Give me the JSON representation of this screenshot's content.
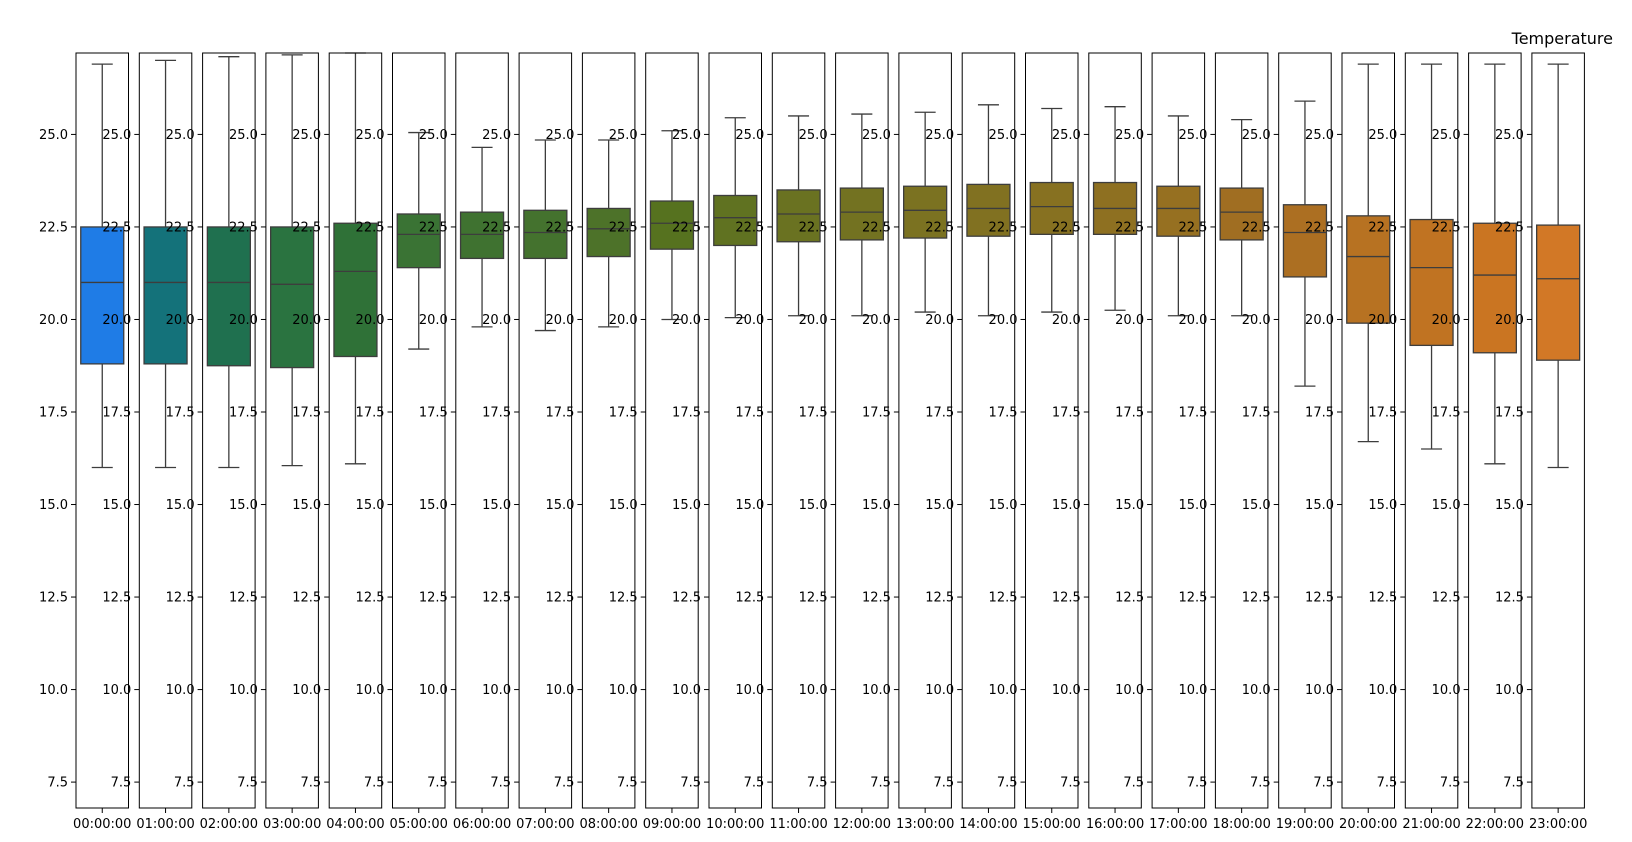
{
  "chart_data": {
    "type": "box",
    "title": "Temperature",
    "xlabel": "",
    "ylabel": "",
    "ylim": [
      6.8,
      27.2
    ],
    "yticks": [
      7.5,
      10.0,
      12.5,
      15.0,
      17.5,
      20.0,
      22.5,
      25.0
    ],
    "ytick_labels": [
      "7.5",
      "10.0",
      "12.5",
      "15.0",
      "17.5",
      "20.0",
      "22.5",
      "25.0"
    ],
    "inner_ytick_labels": [
      "7.5",
      "10.0",
      "12.5",
      "15.0",
      "17.5",
      "20.0",
      "22.5",
      "25.0"
    ],
    "grid": false,
    "legend": "none",
    "categories": [
      "00:00:00",
      "01:00:00",
      "02:00:00",
      "03:00:00",
      "04:00:00",
      "05:00:00",
      "06:00:00",
      "07:00:00",
      "08:00:00",
      "09:00:00",
      "10:00:00",
      "11:00:00",
      "12:00:00",
      "13:00:00",
      "14:00:00",
      "15:00:00",
      "16:00:00",
      "17:00:00",
      "18:00:00",
      "19:00:00",
      "20:00:00",
      "21:00:00",
      "22:00:00",
      "23:00:00"
    ],
    "boxes": [
      {
        "whislo": 16.0,
        "q1": 18.8,
        "med": 21.0,
        "q3": 22.5,
        "whishi": 26.9,
        "color": "#1f7ce6"
      },
      {
        "whislo": 16.0,
        "q1": 18.8,
        "med": 21.0,
        "q3": 22.5,
        "whishi": 27.0,
        "color": "#14727a"
      },
      {
        "whislo": 16.0,
        "q1": 18.75,
        "med": 21.0,
        "q3": 22.5,
        "whishi": 27.1,
        "color": "#1f704f"
      },
      {
        "whislo": 16.05,
        "q1": 18.7,
        "med": 20.95,
        "q3": 22.5,
        "whishi": 27.15,
        "color": "#2a7340"
      },
      {
        "whislo": 16.1,
        "q1": 19.0,
        "med": 21.3,
        "q3": 22.6,
        "whishi": 27.2,
        "color": "#2f7137"
      },
      {
        "whislo": 19.2,
        "q1": 21.4,
        "med": 22.3,
        "q3": 22.85,
        "whishi": 25.05,
        "color": "#3a7334"
      },
      {
        "whislo": 19.8,
        "q1": 21.65,
        "med": 22.3,
        "q3": 22.9,
        "whishi": 24.65,
        "color": "#3f7230"
      },
      {
        "whislo": 19.7,
        "q1": 21.65,
        "med": 22.35,
        "q3": 22.95,
        "whishi": 24.85,
        "color": "#44722e"
      },
      {
        "whislo": 19.8,
        "q1": 21.7,
        "med": 22.45,
        "q3": 23.0,
        "whishi": 24.85,
        "color": "#4d7229"
      },
      {
        "whislo": 20.0,
        "q1": 21.9,
        "med": 22.6,
        "q3": 23.2,
        "whishi": 25.1,
        "color": "#56721f"
      },
      {
        "whislo": 20.05,
        "q1": 22.0,
        "med": 22.75,
        "q3": 23.35,
        "whishi": 25.45,
        "color": "#607221"
      },
      {
        "whislo": 20.1,
        "q1": 22.1,
        "med": 22.85,
        "q3": 23.5,
        "whishi": 25.5,
        "color": "#6a7221"
      },
      {
        "whislo": 20.1,
        "q1": 22.15,
        "med": 22.9,
        "q3": 23.55,
        "whishi": 25.55,
        "color": "#737221"
      },
      {
        "whislo": 20.2,
        "q1": 22.2,
        "med": 22.95,
        "q3": 23.6,
        "whishi": 25.6,
        "color": "#7b7221"
      },
      {
        "whislo": 20.1,
        "q1": 22.25,
        "med": 23.0,
        "q3": 23.65,
        "whishi": 25.8,
        "color": "#817121"
      },
      {
        "whislo": 20.2,
        "q1": 22.3,
        "med": 23.05,
        "q3": 23.7,
        "whishi": 25.7,
        "color": "#877121"
      },
      {
        "whislo": 20.25,
        "q1": 22.3,
        "med": 23.0,
        "q3": 23.7,
        "whishi": 25.75,
        "color": "#8e7021"
      },
      {
        "whislo": 20.1,
        "q1": 22.25,
        "med": 23.0,
        "q3": 23.6,
        "whishi": 25.5,
        "color": "#967021"
      },
      {
        "whislo": 20.1,
        "q1": 22.15,
        "med": 22.9,
        "q3": 23.55,
        "whishi": 25.4,
        "color": "#a06e22"
      },
      {
        "whislo": 18.2,
        "q1": 21.15,
        "med": 22.35,
        "q3": 23.1,
        "whishi": 25.9,
        "color": "#ac6f22"
      },
      {
        "whislo": 16.7,
        "q1": 19.9,
        "med": 21.7,
        "q3": 22.8,
        "whishi": 26.9,
        "color": "#b77222"
      },
      {
        "whislo": 16.5,
        "q1": 19.3,
        "med": 21.4,
        "q3": 22.7,
        "whishi": 26.9,
        "color": "#c07322"
      },
      {
        "whislo": 16.1,
        "q1": 19.1,
        "med": 21.2,
        "q3": 22.6,
        "whishi": 26.9,
        "color": "#ca7522"
      },
      {
        "whislo": 16.0,
        "q1": 18.9,
        "med": 21.1,
        "q3": 22.55,
        "whishi": 26.9,
        "color": "#d27826"
      }
    ]
  }
}
